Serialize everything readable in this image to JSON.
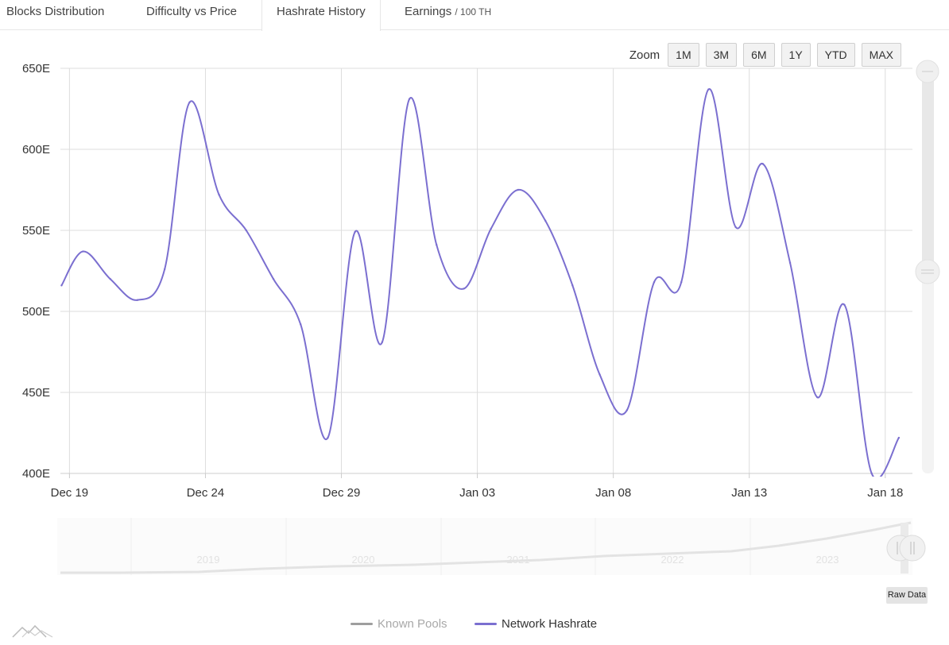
{
  "tabs": [
    {
      "label": "Blocks Distribution",
      "sub": ""
    },
    {
      "label": "Difficulty vs Price",
      "sub": ""
    },
    {
      "label": "Hashrate History",
      "sub": ""
    },
    {
      "label": "Earnings",
      "sub": "/ 100 TH"
    }
  ],
  "active_tab": 2,
  "zoom": {
    "label": "Zoom",
    "buttons": [
      "1M",
      "3M",
      "6M",
      "1Y",
      "YTD",
      "MAX"
    ]
  },
  "raw_data_label": "Raw Data",
  "legend": [
    {
      "name": "Known Pools",
      "color": "#9e9e9e",
      "visible": false
    },
    {
      "name": "Network Hashrate",
      "color": "#7b6fd0",
      "visible": true
    }
  ],
  "colors": {
    "series": "#7b6fd0",
    "grid": "#dddddd",
    "navigator_line": "#e0e0e0"
  },
  "chart_data": {
    "type": "line",
    "title": "",
    "xlabel": "",
    "ylabel": "",
    "ylim": [
      400,
      650
    ],
    "yticks": [
      "400E",
      "450E",
      "500E",
      "550E",
      "600E",
      "650E"
    ],
    "ytick_values": [
      400,
      450,
      500,
      550,
      600,
      650
    ],
    "xticks": [
      "Dec 19",
      "Dec 24",
      "Dec 29",
      "Jan 03",
      "Jan 08",
      "Jan 13",
      "Jan 18"
    ],
    "xtick_values": [
      "2023-12-19",
      "2023-12-24",
      "2023-12-29",
      "2024-01-03",
      "2024-01-08",
      "2024-01-13",
      "2024-01-18"
    ],
    "xlim": [
      "2023-12-18 16:00",
      "2024-01-19 00:00"
    ],
    "series": [
      {
        "name": "Network Hashrate",
        "x": [
          "2023-12-18 17:00",
          "2023-12-19 12:00",
          "2023-12-20 12:00",
          "2023-12-21 12:00",
          "2023-12-22 12:00",
          "2023-12-23 10:00",
          "2023-12-24 12:00",
          "2023-12-25 12:00",
          "2023-12-26 12:00",
          "2023-12-27 12:00",
          "2023-12-28 12:00",
          "2023-12-29 12:00",
          "2023-12-30 12:00",
          "2023-12-31 12:00",
          "2024-01-01 12:00",
          "2024-01-02 12:00",
          "2024-01-03 12:00",
          "2024-01-04 12:00",
          "2024-01-05 12:00",
          "2024-01-06 12:00",
          "2024-01-07 12:00",
          "2024-01-08 12:00",
          "2024-01-09 12:00",
          "2024-01-10 12:00",
          "2024-01-11 12:00",
          "2024-01-12 12:00",
          "2024-01-13 12:00",
          "2024-01-14 12:00",
          "2024-01-15 12:00",
          "2024-01-16 12:00",
          "2024-01-17 12:00",
          "2024-01-18 12:00"
        ],
        "values": [
          516,
          537,
          520,
          507,
          526,
          629,
          572,
          550,
          520,
          492,
          422,
          549,
          481,
          631,
          541,
          514,
          551,
          575,
          556,
          516,
          461,
          439,
          518,
          518,
          637,
          552,
          591,
          530,
          447,
          504,
          400,
          422
        ]
      }
    ],
    "navigator": {
      "labels": [
        "2019",
        "2020",
        "2021",
        "2022",
        "2023"
      ],
      "series_name": "Network Hashrate"
    },
    "grid": true,
    "legend_position": "bottom-center"
  }
}
